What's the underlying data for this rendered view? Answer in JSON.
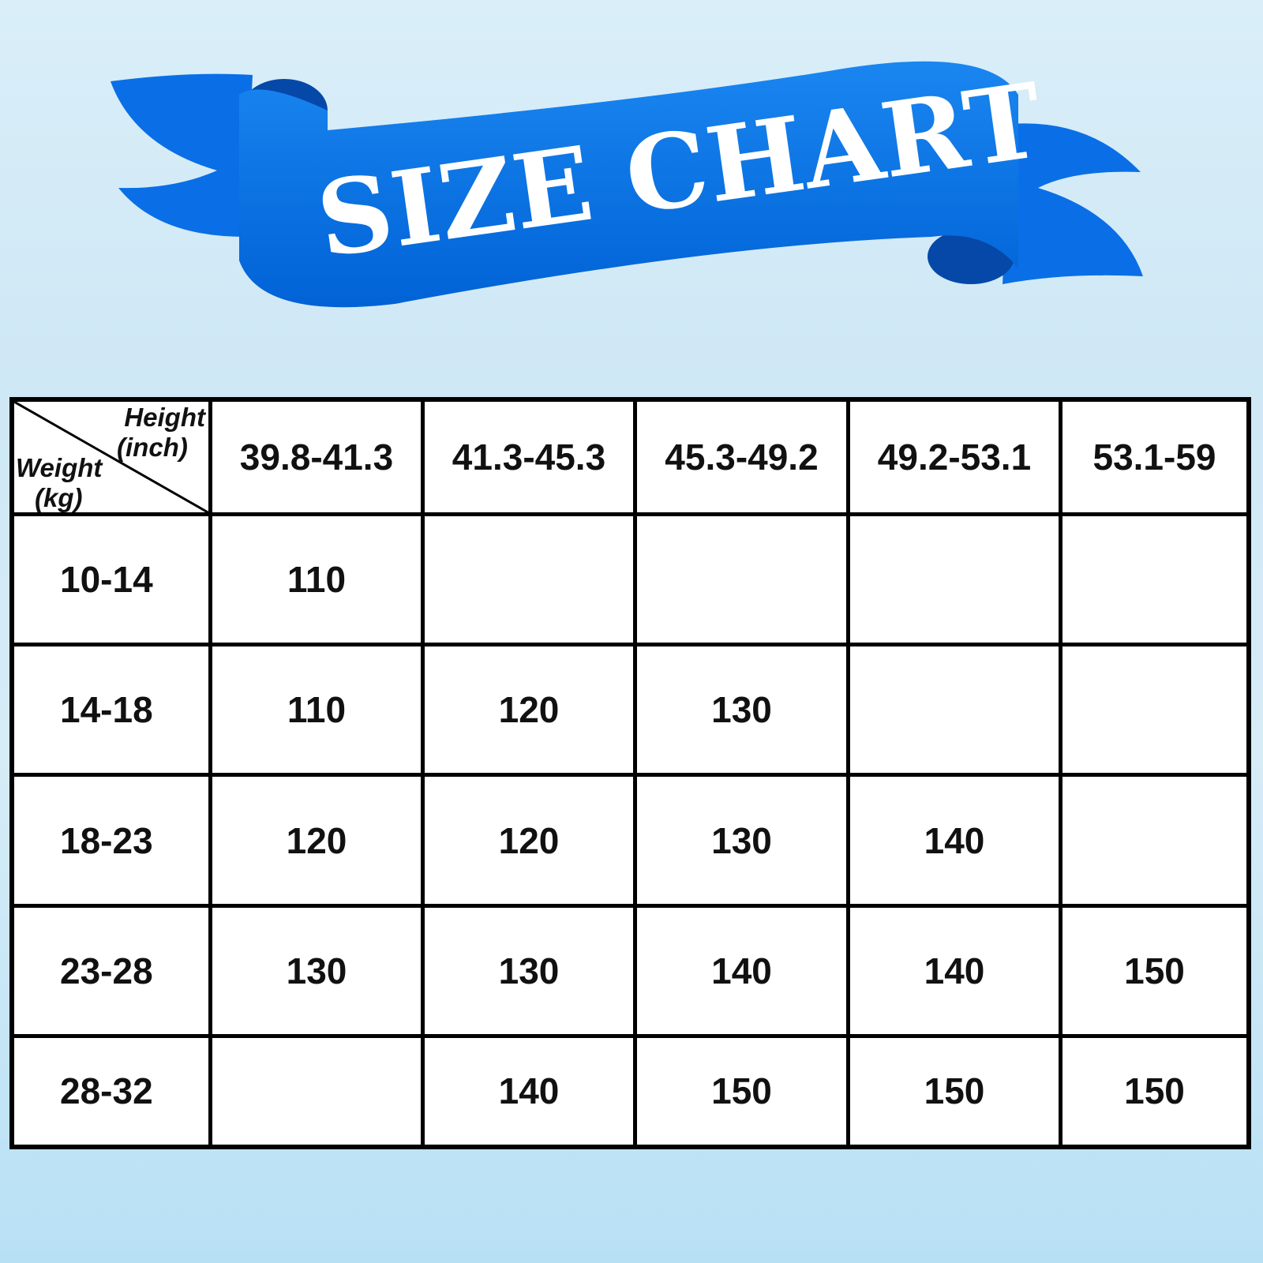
{
  "title": "SIZE CHART",
  "colors": {
    "ribbon": "#0a6fe0",
    "ribbon_dark": "#0548a8",
    "background": "#d3eaf6"
  },
  "table": {
    "corner_top": [
      "Height",
      "(inch)"
    ],
    "corner_bottom": [
      "Weight",
      "(kg)"
    ],
    "columns": [
      "39.8-41.3",
      "41.3-45.3",
      "45.3-49.2",
      "49.2-53.1",
      "53.1-59"
    ],
    "rows": [
      {
        "weight": "10-14",
        "cells": [
          "110",
          "",
          "",
          "",
          ""
        ]
      },
      {
        "weight": "14-18",
        "cells": [
          "110",
          "120",
          "130",
          "",
          ""
        ]
      },
      {
        "weight": "18-23",
        "cells": [
          "120",
          "120",
          "130",
          "140",
          ""
        ]
      },
      {
        "weight": "23-28",
        "cells": [
          "130",
          "130",
          "140",
          "140",
          "150"
        ]
      },
      {
        "weight": "28-32",
        "cells": [
          "",
          "140",
          "150",
          "150",
          "150"
        ]
      }
    ]
  }
}
